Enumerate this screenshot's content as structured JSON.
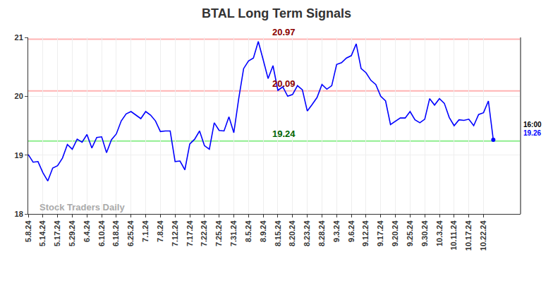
{
  "chart_data": {
    "type": "line",
    "title": "BTAL Long Term Signals",
    "color": "#0000ff",
    "grid": true,
    "ylim": [
      18,
      21
    ],
    "yticks": [
      18,
      19,
      20,
      21
    ],
    "categories": [
      "5.8.24",
      null,
      null,
      "5.14.24",
      null,
      null,
      "5.17.24",
      null,
      null,
      "5.29.24",
      null,
      null,
      "6.4.24",
      null,
      null,
      "6.10.24",
      null,
      null,
      "6.18.24",
      null,
      null,
      "6.25.24",
      null,
      null,
      "7.1.24",
      null,
      null,
      "7.8.24",
      null,
      null,
      "7.12.24",
      null,
      null,
      "7.17.24",
      null,
      null,
      "7.22.24",
      null,
      null,
      "7.25.24",
      null,
      null,
      "7.31.24",
      null,
      null,
      "8.5.24",
      null,
      null,
      "8.9.24",
      null,
      null,
      "8.15.24",
      null,
      null,
      "8.20.24",
      null,
      null,
      "8.23.24",
      null,
      null,
      "8.28.24",
      null,
      null,
      "9.3.24",
      null,
      null,
      "9.6.24",
      null,
      null,
      "9.12.24",
      null,
      null,
      "9.17.24",
      null,
      null,
      "9.20.24",
      null,
      null,
      "9.25.24",
      null,
      null,
      "9.30.24",
      null,
      null,
      "10.3.24",
      null,
      null,
      "10.11.24",
      null,
      null,
      "10.17.24",
      null,
      null,
      "10.22.24",
      null,
      null
    ],
    "values": [
      19.01,
      18.88,
      18.89,
      18.7,
      18.56,
      18.78,
      18.82,
      18.95,
      19.18,
      19.1,
      19.27,
      19.22,
      19.35,
      19.12,
      19.3,
      19.31,
      19.04,
      19.26,
      19.36,
      19.58,
      19.7,
      19.74,
      19.68,
      19.62,
      19.74,
      19.68,
      19.58,
      19.4,
      19.41,
      19.41,
      18.89,
      18.9,
      18.75,
      19.19,
      19.27,
      19.41,
      19.16,
      19.1,
      19.55,
      19.42,
      19.41,
      19.65,
      19.38,
      19.96,
      20.47,
      20.6,
      20.65,
      20.93,
      20.62,
      20.3,
      20.52,
      20.1,
      20.16,
      20.0,
      20.03,
      20.18,
      20.11,
      19.75,
      19.86,
      19.98,
      20.2,
      20.12,
      20.18,
      20.54,
      20.57,
      20.65,
      20.69,
      20.89,
      20.47,
      20.4,
      20.27,
      20.2,
      20.0,
      19.92,
      19.52,
      19.57,
      19.63,
      19.63,
      19.74,
      19.6,
      19.55,
      19.61,
      19.96,
      19.85,
      19.96,
      19.88,
      19.64,
      19.5,
      19.6,
      19.59,
      19.61,
      19.5,
      19.69,
      19.72,
      19.92,
      19.26
    ],
    "levels": [
      {
        "value": 20.97,
        "label": "20.97",
        "color": "#ffb3b3",
        "label_color": "#8b0000"
      },
      {
        "value": 20.09,
        "label": "20.09",
        "color": "#ffb3b3",
        "label_color": "#8b0000"
      },
      {
        "value": 19.24,
        "label": "19.24",
        "color": "#90ee90",
        "label_color": "#006400"
      }
    ],
    "last_label": {
      "time": "16:00",
      "value": 19.26,
      "label": "19.26"
    },
    "watermark": "Stock Traders Daily"
  }
}
